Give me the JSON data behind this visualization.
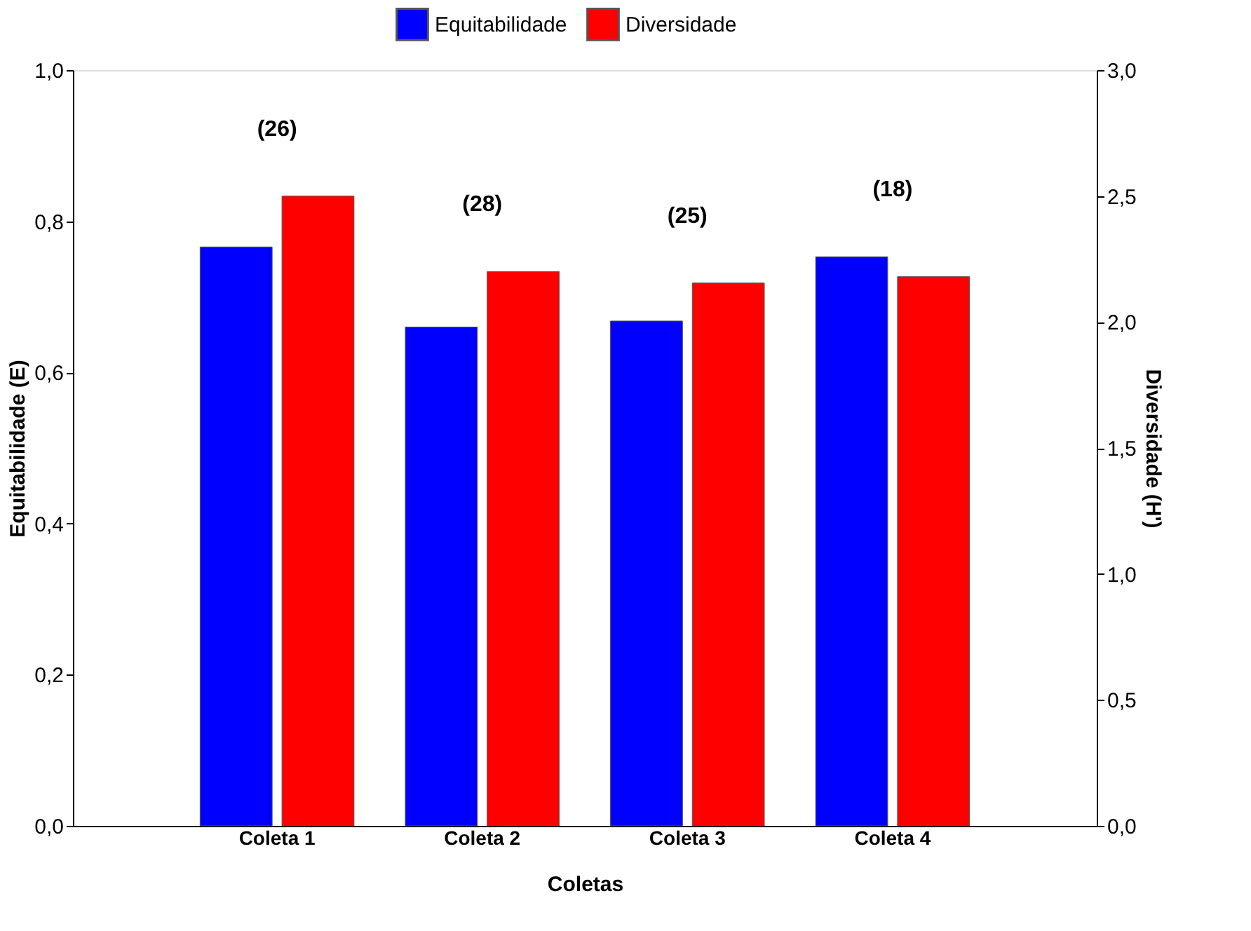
{
  "chart_data": {
    "type": "bar",
    "categories": [
      "Coleta 1",
      "Coleta 2",
      "Coleta 3",
      "Coleta 4"
    ],
    "xlabel": "Coletas",
    "ylabel": "Equitabilidade (E)",
    "y2label": "Diversidade (H')",
    "series": [
      {
        "name": "Equitabilidade",
        "color": "#0000ff",
        "values": [
          0.766,
          0.66,
          0.668,
          0.753
        ]
      },
      {
        "name": "Diversidade",
        "color": "#ff0000",
        "values": [
          2.5,
          2.2,
          2.155,
          2.18
        ],
        "axis": "y2"
      }
    ],
    "ylim": [
      0,
      1
    ],
    "yticks": [
      {
        "value": 0,
        "label": "0,0"
      },
      {
        "value": 0.2,
        "label": "0,2"
      },
      {
        "value": 0.4,
        "label": "0,4"
      },
      {
        "value": 0.6,
        "label": "0,6"
      },
      {
        "value": 0.8,
        "label": "0,8"
      },
      {
        "value": 1,
        "label": "1,0"
      }
    ],
    "y2lim": [
      0,
      3
    ],
    "y2ticks": [
      {
        "value": 0,
        "label": "0,0"
      },
      {
        "value": 0.5,
        "label": "0,5"
      },
      {
        "value": 1,
        "label": "1,0"
      },
      {
        "value": 1.5,
        "label": "1,5"
      },
      {
        "value": 2,
        "label": "2,0"
      },
      {
        "value": 2.5,
        "label": "2,5"
      },
      {
        "value": 3,
        "label": "3,0"
      }
    ],
    "annotations": [
      "(26)",
      "(28)",
      "(25)",
      "(18)"
    ],
    "legend": "top",
    "grid": false
  }
}
